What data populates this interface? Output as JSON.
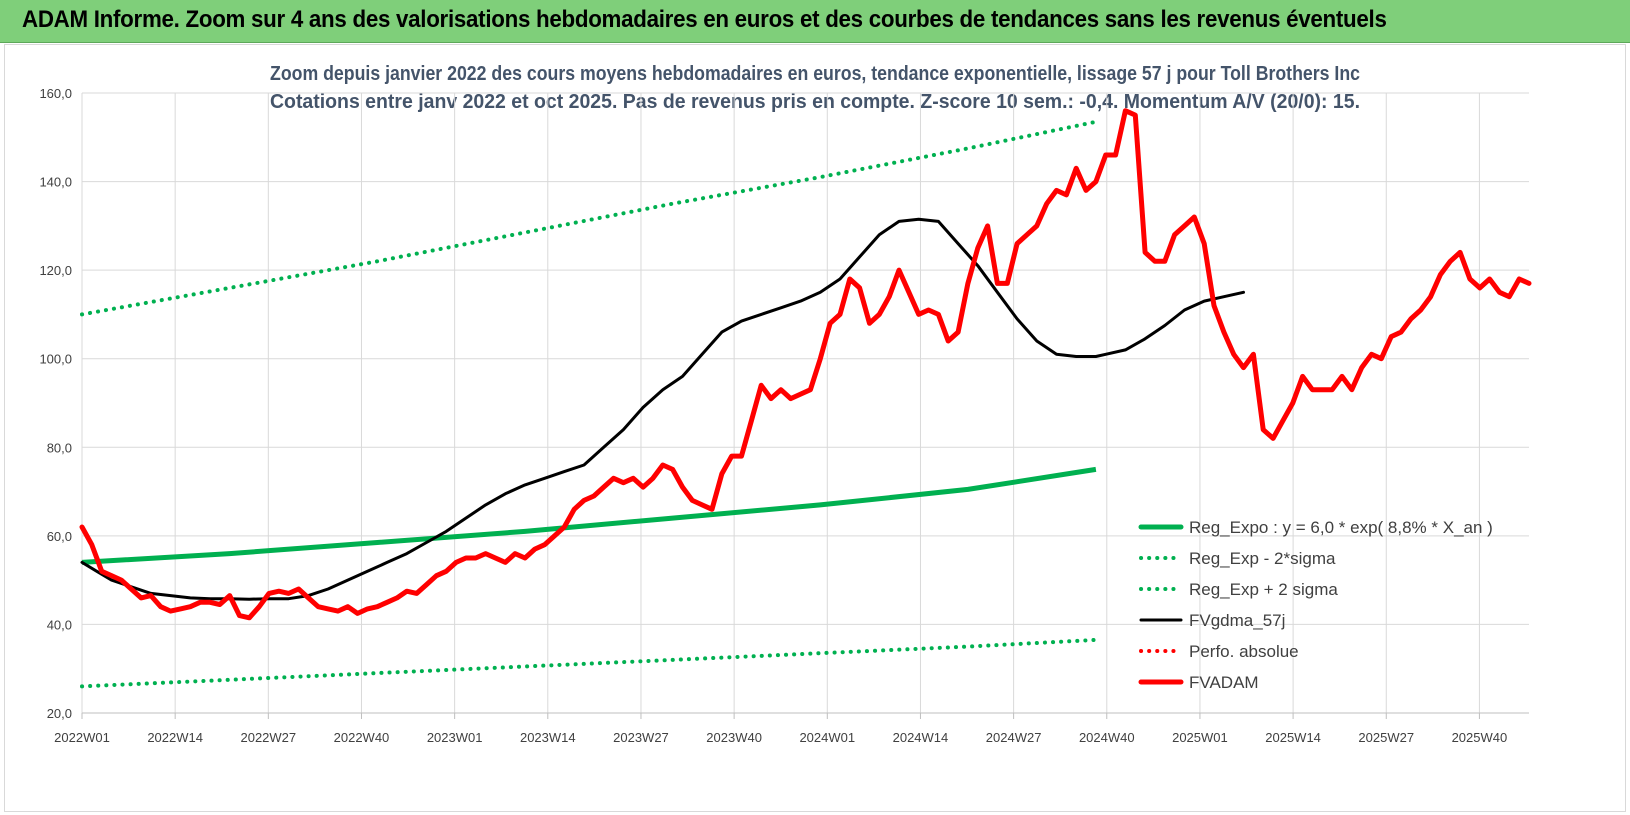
{
  "banner": {
    "title": "ADAM Informe. Zoom sur 4 ans des valorisations hebdomadaires en euros et des courbes de tendances sans les revenus éventuels"
  },
  "chart_data": {
    "type": "line",
    "title_line1": "Zoom depuis janvier 2022 des cours moyens hebdomadaires en euros, tendance exponentielle, lissage 57 j pour Toll Brothers Inc",
    "title_line2": "Cotations entre janv 2022 et oct 2025. Pas de revenus pris en compte. Z-score 10 sem.: -0,4. Momentum A/V (20/0): 15.",
    "ylim": [
      20,
      160
    ],
    "yticks": [
      "20,0",
      "40,0",
      "60,0",
      "80,0",
      "100,0",
      "120,0",
      "140,0",
      "160,0"
    ],
    "grid": true,
    "x_tick_labels": [
      "2022W01",
      "2022W14",
      "2022W27",
      "2022W40",
      "2023W01",
      "2023W14",
      "2023W27",
      "2023W40",
      "2024W01",
      "2024W14",
      "2024W27",
      "2024W40",
      "2025W01",
      "2025W14",
      "2025W27",
      "2025W40"
    ],
    "legend_position": "bottom-right",
    "legend": [
      {
        "label": "Reg_Expo : y = 6,0 * exp( 8,8% *  X_an )",
        "color": "#00b050",
        "style": "solid-thick"
      },
      {
        "label": "Reg_Exp - 2*sigma",
        "color": "#00b050",
        "style": "dotted"
      },
      {
        "label": "Reg_Exp + 2 sigma",
        "color": "#00b050",
        "style": "dotted"
      },
      {
        "label": "FVgdma_57j",
        "color": "#000000",
        "style": "solid"
      },
      {
        "label": "Perfo. absolue",
        "color": "#ff0000",
        "style": "dotted"
      },
      {
        "label": "FVADAM",
        "color": "#ff0000",
        "style": "solid-thick"
      }
    ],
    "series": [
      {
        "name": "Reg_Expo : y = 6,0 * exp( 8,8% *  X_an )",
        "color": "#00b050",
        "points": [
          [
            0,
            54
          ],
          [
            30,
            56
          ],
          [
            60,
            58.5
          ],
          [
            90,
            61
          ],
          [
            120,
            64
          ],
          [
            150,
            67
          ],
          [
            180,
            70.5
          ],
          [
            206,
            75
          ]
        ]
      },
      {
        "name": "Reg_Exp - 2*sigma",
        "color": "#00b050",
        "points": [
          [
            0,
            26
          ],
          [
            30,
            27.5
          ],
          [
            60,
            29
          ],
          [
            90,
            30.5
          ],
          [
            120,
            32
          ],
          [
            150,
            33.5
          ],
          [
            180,
            35
          ],
          [
            206,
            36.5
          ]
        ]
      },
      {
        "name": "Reg_Exp + 2 sigma",
        "color": "#00b050",
        "points": [
          [
            0,
            110
          ],
          [
            30,
            116
          ],
          [
            60,
            122
          ],
          [
            90,
            128.5
          ],
          [
            120,
            135
          ],
          [
            150,
            141
          ],
          [
            180,
            147.5
          ],
          [
            206,
            153.5
          ]
        ]
      },
      {
        "name": "FVgdma_57j",
        "color": "#000000",
        "points": [
          [
            0,
            54
          ],
          [
            3,
            52
          ],
          [
            6,
            50
          ],
          [
            10,
            48.5
          ],
          [
            14,
            47
          ],
          [
            18,
            46.5
          ],
          [
            22,
            46
          ],
          [
            26,
            45.8
          ],
          [
            30,
            45.8
          ],
          [
            34,
            45.7
          ],
          [
            38,
            45.8
          ],
          [
            42,
            45.8
          ],
          [
            46,
            46.5
          ],
          [
            50,
            48
          ],
          [
            54,
            50
          ],
          [
            58,
            52
          ],
          [
            62,
            54
          ],
          [
            66,
            56
          ],
          [
            70,
            58.5
          ],
          [
            74,
            61
          ],
          [
            78,
            64
          ],
          [
            82,
            67
          ],
          [
            86,
            69.5
          ],
          [
            90,
            71.5
          ],
          [
            94,
            73
          ],
          [
            98,
            74.5
          ],
          [
            102,
            76
          ],
          [
            106,
            80
          ],
          [
            110,
            84
          ],
          [
            114,
            89
          ],
          [
            118,
            93
          ],
          [
            122,
            96
          ],
          [
            126,
            101
          ],
          [
            130,
            106
          ],
          [
            134,
            108.5
          ],
          [
            138,
            110
          ],
          [
            142,
            111.5
          ],
          [
            146,
            113
          ],
          [
            150,
            115
          ],
          [
            154,
            118
          ],
          [
            158,
            123
          ],
          [
            162,
            128
          ],
          [
            166,
            131
          ],
          [
            170,
            131.5
          ],
          [
            174,
            131
          ],
          [
            178,
            126
          ],
          [
            182,
            121
          ],
          [
            186,
            115
          ],
          [
            190,
            109
          ],
          [
            194,
            104
          ],
          [
            198,
            101
          ],
          [
            202,
            100.5
          ],
          [
            206,
            100.5
          ],
          [
            208,
            101
          ],
          [
            212,
            102
          ],
          [
            216,
            104.5
          ],
          [
            220,
            107.5
          ],
          [
            224,
            111
          ],
          [
            228,
            113
          ],
          [
            232,
            114
          ],
          [
            236,
            115
          ]
        ]
      },
      {
        "name": "FVADAM",
        "color": "#ff0000",
        "points": [
          [
            0,
            62
          ],
          [
            2,
            58
          ],
          [
            4,
            52
          ],
          [
            6,
            51
          ],
          [
            8,
            50
          ],
          [
            10,
            48
          ],
          [
            12,
            46
          ],
          [
            14,
            46.5
          ],
          [
            16,
            44
          ],
          [
            18,
            43
          ],
          [
            20,
            43.5
          ],
          [
            22,
            44
          ],
          [
            24,
            45
          ],
          [
            26,
            45
          ],
          [
            28,
            44.5
          ],
          [
            30,
            46.5
          ],
          [
            32,
            42
          ],
          [
            34,
            41.5
          ],
          [
            36,
            44
          ],
          [
            38,
            47
          ],
          [
            40,
            47.5
          ],
          [
            42,
            47
          ],
          [
            44,
            48
          ],
          [
            46,
            46
          ],
          [
            48,
            44
          ],
          [
            50,
            43.5
          ],
          [
            52,
            43
          ],
          [
            54,
            44
          ],
          [
            56,
            42.5
          ],
          [
            58,
            43.5
          ],
          [
            60,
            44
          ],
          [
            62,
            45
          ],
          [
            64,
            46
          ],
          [
            66,
            47.5
          ],
          [
            68,
            47
          ],
          [
            70,
            49
          ],
          [
            72,
            51
          ],
          [
            74,
            52
          ],
          [
            76,
            54
          ],
          [
            78,
            55
          ],
          [
            80,
            55
          ],
          [
            82,
            56
          ],
          [
            84,
            55
          ],
          [
            86,
            54
          ],
          [
            88,
            56
          ],
          [
            90,
            55
          ],
          [
            92,
            57
          ],
          [
            94,
            58
          ],
          [
            96,
            60
          ],
          [
            98,
            62
          ],
          [
            100,
            66
          ],
          [
            102,
            68
          ],
          [
            104,
            69
          ],
          [
            106,
            71
          ],
          [
            108,
            73
          ],
          [
            110,
            72
          ],
          [
            112,
            73
          ],
          [
            114,
            71
          ],
          [
            116,
            73
          ],
          [
            118,
            76
          ],
          [
            120,
            75
          ],
          [
            122,
            71
          ],
          [
            124,
            68
          ],
          [
            126,
            67
          ],
          [
            128,
            66
          ],
          [
            130,
            74
          ],
          [
            132,
            78
          ],
          [
            134,
            78
          ],
          [
            136,
            86
          ],
          [
            138,
            94
          ],
          [
            140,
            91
          ],
          [
            142,
            93
          ],
          [
            144,
            91
          ],
          [
            146,
            92
          ],
          [
            148,
            93
          ],
          [
            150,
            100
          ],
          [
            152,
            108
          ],
          [
            154,
            110
          ],
          [
            156,
            118
          ],
          [
            158,
            116
          ],
          [
            160,
            108
          ],
          [
            162,
            110
          ],
          [
            164,
            114
          ],
          [
            166,
            120
          ],
          [
            168,
            115
          ],
          [
            170,
            110
          ],
          [
            172,
            111
          ],
          [
            174,
            110
          ],
          [
            176,
            104
          ],
          [
            178,
            106
          ],
          [
            180,
            117
          ],
          [
            182,
            125
          ],
          [
            184,
            130
          ],
          [
            186,
            117
          ],
          [
            188,
            117
          ],
          [
            190,
            126
          ],
          [
            192,
            128
          ],
          [
            194,
            130
          ],
          [
            196,
            135
          ],
          [
            198,
            138
          ],
          [
            200,
            137
          ],
          [
            202,
            143
          ],
          [
            204,
            138
          ],
          [
            206,
            140
          ],
          [
            208,
            146
          ],
          [
            210,
            146
          ],
          [
            212,
            156
          ],
          [
            214,
            155
          ],
          [
            216,
            124
          ],
          [
            218,
            122
          ],
          [
            220,
            122
          ],
          [
            222,
            128
          ],
          [
            224,
            130
          ],
          [
            226,
            132
          ],
          [
            228,
            126
          ],
          [
            230,
            112
          ],
          [
            232,
            106
          ],
          [
            234,
            101
          ],
          [
            236,
            98
          ],
          [
            238,
            101
          ],
          [
            240,
            84
          ],
          [
            242,
            82
          ],
          [
            244,
            86
          ],
          [
            246,
            90
          ],
          [
            248,
            96
          ],
          [
            250,
            93
          ],
          [
            252,
            93
          ],
          [
            254,
            93
          ],
          [
            256,
            96
          ],
          [
            258,
            93
          ],
          [
            260,
            98
          ],
          [
            262,
            101
          ],
          [
            264,
            100
          ],
          [
            266,
            105
          ],
          [
            268,
            106
          ],
          [
            270,
            109
          ],
          [
            272,
            111
          ],
          [
            274,
            114
          ],
          [
            276,
            119
          ],
          [
            278,
            122
          ],
          [
            280,
            124
          ],
          [
            282,
            118
          ],
          [
            284,
            116
          ],
          [
            286,
            118
          ],
          [
            288,
            115
          ],
          [
            290,
            114
          ],
          [
            292,
            118
          ],
          [
            294,
            117
          ]
        ]
      }
    ]
  }
}
